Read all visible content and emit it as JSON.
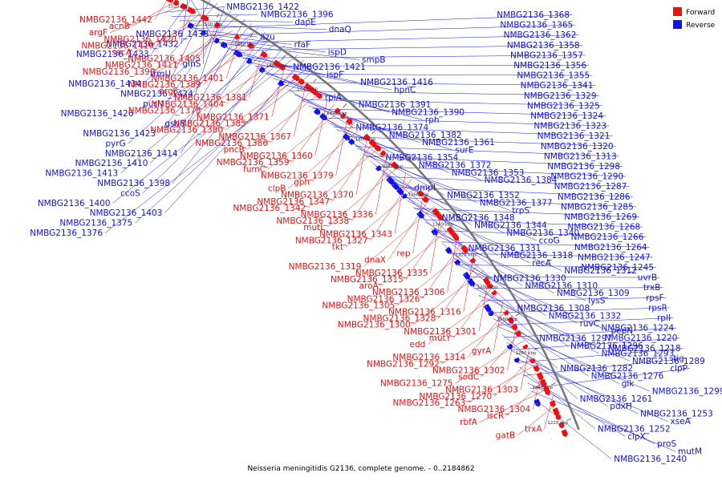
{
  "chart_data": {
    "type": "circular-genome-map",
    "caption": "Neisseria meningitidis G2136, complete genome. - 0..2184862",
    "colors": {
      "forward": "#ee1111",
      "reverse": "#1111ee",
      "backbone": "#777777"
    },
    "legend": [
      {
        "name": "Forward",
        "color": "#ee1111"
      },
      {
        "name": "Reverse",
        "color": "#1111ee"
      }
    ],
    "ticks": [
      "1520 kbp",
      "1500 kbp",
      "1480 kbp",
      "1460 kbp",
      "1440 kbp",
      "1420 kbp",
      "1400 kbp",
      "1380 kbp",
      "1360 kbp",
      "1340 kbp",
      "1320 kbp",
      "1300 kbp",
      "1280 kbp",
      "1260 kbp",
      "1240 kbp",
      "1220 kbp"
    ],
    "reverse_labels": [
      "NMBG2136_1422",
      "NMBG2136_1396",
      "dapE",
      "dnaQ",
      "azu",
      "rfaF",
      "ispD",
      "smpB",
      "NMBG2136_1421",
      "ispF",
      "NMBG2136_1416",
      "hpnC",
      "rpiA",
      "NMBG2136_1391",
      "NMBG2136_1390",
      "rph",
      "NMBG2136_1374",
      "NMBG2136_1382",
      "NMBG2136_1361",
      "surE",
      "NMBG2136_1354",
      "NMBG2136_1372",
      "NMBG2136_1353",
      "NMBG2136_1384",
      "dmpI",
      "NMBG2136_1352",
      "NMBG2136_1377",
      "trpS",
      "NMBG2136_1348",
      "NMBG2136_1344",
      "NMBG2136_1340",
      "ccoG",
      "NMBG2136_1331",
      "NMBG2136_1318",
      "recA",
      "NMBG2136_1312",
      "NMBG2136_1330",
      "NMBG2136_1310",
      "NMBG2136_1309",
      "lysS",
      "NMBG2136_1308",
      "NMBG2136_1332",
      "ruvC",
      "pepN",
      "NMBG2136_1297",
      "NMBG2136_1296",
      "NMBG2136_1293",
      "NMBG2136_1289",
      "NMBG2136_1282",
      "NMBG2136_1276",
      "glk",
      "NMBG2136_1299",
      "NMBG2136_1261",
      "pdxH",
      "NMBG2136_1253",
      "xseA",
      "NMBG2136_1252",
      "clpX",
      "proS",
      "mutM",
      "NMBG2136_1240",
      "NMBG2136_1368",
      "NMBG2136_1365",
      "NMBG2136_1362",
      "NMBG2136_1358",
      "NMBG2136_1357",
      "NMBG2136_1356",
      "NMBG2136_1355",
      "NMBG2136_1341",
      "NMBG2136_1329",
      "NMBG2136_1325",
      "NMBG2136_1324",
      "NMBG2136_1323",
      "NMBG2136_1321",
      "NMBG2136_1320",
      "NMBG2136_1313",
      "NMBG2136_1298",
      "NMBG2136_1290",
      "NMBG2136_1287",
      "NMBG2136_1286",
      "NMBG2136_1285",
      "NMBG2136_1269",
      "NMBG2136_1268",
      "NMBG2136_1266",
      "NMBG2136_1264",
      "NMBG2136_1247",
      "NMBG2136_1245",
      "uvrB",
      "trxB",
      "rpsF",
      "rpsR",
      "rplI",
      "NMBG2136_1224",
      "NMBG2136_1220",
      "NMBG2136_1218",
      "tig",
      "clpP",
      "NMBG2136_1438",
      "NMBG2136_1432",
      "NMBG2136_1433",
      "glnS",
      "trmU",
      "NMBG2136_1434",
      "NMBG2136_1424",
      "purN",
      "NMBG2136_1426",
      "gshB",
      "NMBG2136_1423",
      "pyrG",
      "NMBG2136_1414",
      "NMBG2136_1410",
      "NMBG2136_1413",
      "NMBG2136_1398",
      "ccoS",
      "NMBG2136_1400",
      "NMBG2136_1403",
      "NMBG2136_1375",
      "NMBG2136_1376"
    ],
    "forward_labels": [
      "NMBG2136_1442",
      "acnB",
      "argF",
      "NMBG2136_1420",
      "NMBG2136_1419",
      "secA",
      "NMBG2136_1405",
      "NMBG2136_1411",
      "NMBG2136_1399",
      "NMBG2136_1401",
      "NMBG2136_1389",
      "argS",
      "NMBG2136_1381",
      "NMBG2136_1404",
      "NMBG2136_1378",
      "NMBG2136_1371",
      "NMBG2136_1385",
      "NMBG2136_1380",
      "NMBG2136_1367",
      "NMBG2136_1386",
      "pncB",
      "NMBG2136_1360",
      "NMBG2136_1359",
      "fumC",
      "NMBG2136_1379",
      "gph",
      "clpB",
      "NMBG2136_1370",
      "NMBG2136_1347",
      "NMBG2136_1342",
      "NMBG2136_1336",
      "NMBG2136_1338",
      "mutL",
      "NMBG2136_1343",
      "NMBG2136_1327",
      "tkt",
      "rep",
      "dnaX",
      "NMBG2136_1319",
      "NMBG2136_1335",
      "NMBG2136_1315",
      "aroA",
      "NMBG2136_1306",
      "NMBG2136_1326",
      "NMBG2136_1305",
      "NMBG2136_1316",
      "NMBG2136_1328",
      "NMBG2136_1300",
      "NMBG2136_1301",
      "mutY",
      "edd",
      "gyrA",
      "NMBG2136_1314",
      "NMBG2136_1292",
      "NMBG2136_1302",
      "sodC",
      "NMBG2136_1275",
      "NMBG2136_1303",
      "NMBG2136_1270",
      "NMBG2136_1263",
      "NMBG2136_1304",
      "iscR",
      "rbfA",
      "trxA",
      "gatB"
    ]
  }
}
